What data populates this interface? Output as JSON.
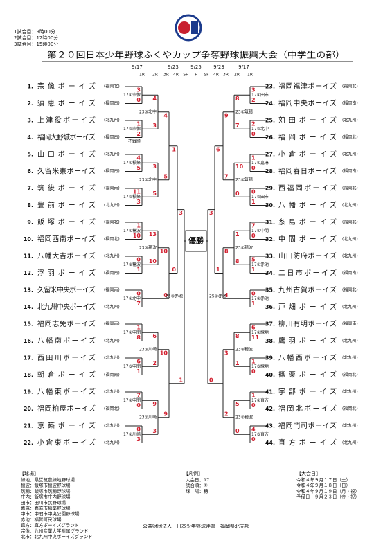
{
  "header": {
    "schedule": [
      "1試合目：9時00分",
      "2試合目：12時00分",
      "3試合目：15時00分"
    ],
    "title": "第２０回日本少年野球ふくやカップ争奪野球振興大会（中学生の部）",
    "dates": [
      "9/17",
      "9/23",
      "9/25",
      "9/23",
      "9/17"
    ],
    "rounds": [
      "1R",
      "2R",
      "3R",
      "4R",
      "SF",
      "F",
      "SF",
      "4R",
      "3R",
      "2R",
      "1R"
    ]
  },
  "left": {
    "teams": [
      {
        "no": "1.",
        "name": "宗像ボーイズ",
        "region": "(福岡北)"
      },
      {
        "no": "2.",
        "name": "須恵ボーイズ",
        "region": "(福岡南)"
      },
      {
        "no": "3.",
        "name": "上津役ボーイズ",
        "region": "(北九州)"
      },
      {
        "no": "4.",
        "name": "福岡大野城ボーイズ",
        "region": "(福岡南)"
      },
      {
        "no": "5.",
        "name": "山口ボーイズ",
        "region": "(北九州)"
      },
      {
        "no": "6.",
        "name": "久留米東ボーイズ",
        "region": "(福岡南)"
      },
      {
        "no": "7.",
        "name": "筑後ボーイズ",
        "region": "(福岡南)"
      },
      {
        "no": "8.",
        "name": "豊前ボーイズ",
        "region": "(北九州)"
      },
      {
        "no": "9.",
        "name": "飯塚ボーイズ",
        "region": "(福岡北)"
      },
      {
        "no": "10.",
        "name": "福岡西南ボーイズ",
        "region": "(福岡北)"
      },
      {
        "no": "11.",
        "name": "八幡大吉ボーイズ",
        "region": "(北九州)"
      },
      {
        "no": "12.",
        "name": "浮羽ボーイズ",
        "region": "(福岡南)"
      },
      {
        "no": "13.",
        "name": "久留米中央ボーイズ",
        "region": "(福岡南)"
      },
      {
        "no": "14.",
        "name": "北九州中央ボーイズ",
        "region": "(北九州)"
      },
      {
        "no": "15.",
        "name": "福岡志免ボーイズ",
        "region": "(福岡南)"
      },
      {
        "no": "16.",
        "name": "八幡南ボーイズ",
        "region": "(北九州)"
      },
      {
        "no": "17.",
        "name": "西田川ボーイズ",
        "region": "(北九州)"
      },
      {
        "no": "18.",
        "name": "朝倉ボーイズ",
        "region": "(福岡南)"
      },
      {
        "no": "19.",
        "name": "八幡東ボーイズ",
        "region": "(北九州)"
      },
      {
        "no": "20.",
        "name": "福岡粕屋ボーイズ",
        "region": "(福岡北)"
      },
      {
        "no": "21.",
        "name": "京築ボーイズ",
        "region": "(北九州)"
      },
      {
        "no": "22.",
        "name": "小倉東ボーイズ",
        "region": "(北九州)"
      }
    ],
    "matches": [
      {
        "label": "17①宗像",
        "scores": [
          "3",
          "0"
        ]
      },
      {
        "label": "17②宗像",
        "scores": [
          "1",
          "2"
        ],
        "note": "不戦勝"
      },
      {
        "label": "17①稲築",
        "scores": [
          "4",
          "5"
        ]
      },
      {
        "label": "17②稲築",
        "scores": [
          "11",
          "3"
        ]
      },
      {
        "label": "17①穂波",
        "scores": [
          "1",
          "10"
        ]
      },
      {
        "label": "17③穂波",
        "scores": [
          "0",
          "1"
        ]
      },
      {
        "label": "17①北中",
        "scores": [
          "0",
          "7"
        ]
      },
      {
        "label": "17①中間",
        "scores": [
          "1",
          "8"
        ]
      },
      {
        "label": "17③中間",
        "scores": [
          "6",
          "1"
        ]
      },
      {
        "label": "17②中間",
        "scores": [
          "7",
          "0"
        ]
      },
      {
        "label": "17①川崎",
        "scores": [
          "0",
          "3"
        ]
      },
      {
        "label": "23③北中",
        "scores": [
          "4",
          "3"
        ]
      },
      {
        "label": "23②北中",
        "scores": [
          "3",
          "5"
        ]
      },
      {
        "label": "23③穂波",
        "scores": [
          "13",
          "10"
        ]
      },
      {
        "label": "23③川崎",
        "scores": [
          "6",
          "2"
        ]
      },
      {
        "label": "23②川崎",
        "scores": [
          "9",
          "3"
        ]
      },
      {
        "scores": [
          "4",
          "5"
        ]
      },
      {
        "scores": [
          "10",
          "0"
        ]
      },
      {
        "scores": [
          "10",
          "9"
        ]
      },
      {
        "scores": [
          "1",
          "0"
        ]
      },
      {
        "label": "25③赤池",
        "scores": [
          "3",
          "1"
        ]
      }
    ]
  },
  "right": {
    "teams": [
      {
        "no": "23.",
        "name": "福岡福津ボーイズ",
        "region": "(福岡北)"
      },
      {
        "no": "24.",
        "name": "福岡中央ボーイズ",
        "region": "(福岡南)"
      },
      {
        "no": "25.",
        "name": "苅田ボーイズ",
        "region": "(北九州)"
      },
      {
        "no": "26.",
        "name": "福岡ボーイズ",
        "region": "(福岡北)"
      },
      {
        "no": "27.",
        "name": "小倉ボーイズ",
        "region": "(北九州)"
      },
      {
        "no": "28.",
        "name": "福岡春日ボーイズ",
        "region": "(福岡南)"
      },
      {
        "no": "29.",
        "name": "西福岡ボーイズ",
        "region": "(福岡北)"
      },
      {
        "no": "30.",
        "name": "八幡ボーイズ",
        "region": "(北九州)"
      },
      {
        "no": "31.",
        "name": "糸島ボーイズ",
        "region": "(福岡北)"
      },
      {
        "no": "32.",
        "name": "中間ボーイズ",
        "region": "(北九州)"
      },
      {
        "no": "33.",
        "name": "山口防府ボーイズ",
        "region": "(北九州)"
      },
      {
        "no": "34.",
        "name": "二日市ボーイズ",
        "region": "(福岡南)"
      },
      {
        "no": "35.",
        "name": "九州古賀ボーイズ",
        "region": "(福岡北)"
      },
      {
        "no": "36.",
        "name": "戸畑ボーイズ",
        "region": "(北九州)"
      },
      {
        "no": "37.",
        "name": "柳川有明ボーイズ",
        "region": "(福岡南)"
      },
      {
        "no": "38.",
        "name": "鷹羽ボーイズ",
        "region": "(北九州)"
      },
      {
        "no": "39.",
        "name": "八幡西ボーイズ",
        "region": "(北九州)"
      },
      {
        "no": "40.",
        "name": "篠栗ボーイズ",
        "region": "(福岡北)"
      },
      {
        "no": "41.",
        "name": "宇部ボーイズ",
        "region": "(北九州)"
      },
      {
        "no": "42.",
        "name": "福岡北ボーイズ",
        "region": "(福岡北)"
      },
      {
        "no": "43.",
        "name": "福岡門司ボーイズ",
        "region": "(北九州)"
      },
      {
        "no": "44.",
        "name": "直方ボーイズ",
        "region": "(北九州)"
      }
    ],
    "matches": [
      {
        "label": "17①田市",
        "scores": [
          "3",
          "2"
        ]
      },
      {
        "label": "17②北中",
        "scores": [
          "2",
          "0"
        ]
      },
      {
        "label": "17①嘉麻",
        "scores": [
          "1",
          "0"
        ]
      },
      {
        "label": "17②田市",
        "scores": [
          "0",
          "1"
        ]
      },
      {
        "label": "17①中間",
        "scores": [
          "7",
          "0"
        ]
      },
      {
        "label": "17①赤池",
        "scores": [
          "5",
          "1"
        ]
      },
      {
        "label": "17②赤池",
        "scores": [
          "0",
          "1"
        ]
      },
      {
        "label": "17①緑地",
        "scores": [
          "6",
          "11"
        ]
      },
      {
        "label": "17③緑地",
        "scores": [
          "1",
          "0"
        ]
      },
      {
        "label": "17①直方",
        "scores": [
          "1",
          "0"
        ]
      },
      {
        "label": "17③直方",
        "scores": [
          "4",
          "0"
        ]
      },
      {
        "label": "23①筑穂",
        "scores": [
          "8",
          "7"
        ]
      },
      {
        "label": "23②筑穂",
        "scores": [
          "10",
          "0"
        ]
      },
      {
        "label": "23①穂波",
        "scores": [
          "1",
          "8"
        ]
      },
      {
        "label": "23③穂波",
        "scores": [
          "8",
          "1"
        ]
      },
      {
        "label": "23②穂波",
        "scores": [
          "5",
          "0"
        ]
      },
      {
        "scores": [
          "9",
          "7"
        ]
      },
      {
        "scores": [
          "8",
          "4"
        ]
      },
      {
        "scores": [
          "3",
          "2"
        ]
      },
      {
        "scores": [
          "6",
          "1"
        ]
      },
      {
        "label": "25②赤池",
        "scores": [
          "3",
          "0"
        ]
      }
    ]
  },
  "champion": "優勝",
  "footer": {
    "venues_title": "【球場】",
    "venues": [
      "緑地：県営筑豊緑地野球場",
      "穂波：飯塚市穂波野球場",
      "筑穂：飯塚市筑穂野球場",
      "庄内：飯塚市庄内野球場",
      "田市：田川市民野球場",
      "嘉麻：嘉麻市稲築野球場",
      "中市：中間市中央公園野球場",
      "赤池：福智町民球場",
      "直方：直方ボーイズグランド",
      "宗像：九州産業大学附属グランド",
      "北市：北九州中央ボーイズグランド"
    ],
    "legend_title": "【凡例】",
    "legend": [
      "大会日：17",
      "試合順：①",
      "球　場：穂"
    ],
    "days_title": "【大会日】",
    "days": [
      "令和４年９月１７日（土）",
      "令和４年９月１８日（日）",
      "令和４年９月１９日（月・祝）",
      "予備日　９月２３日（金・祝）"
    ],
    "organizer": "公益財団法人　日本少年野球連盟　福岡県北支部"
  }
}
